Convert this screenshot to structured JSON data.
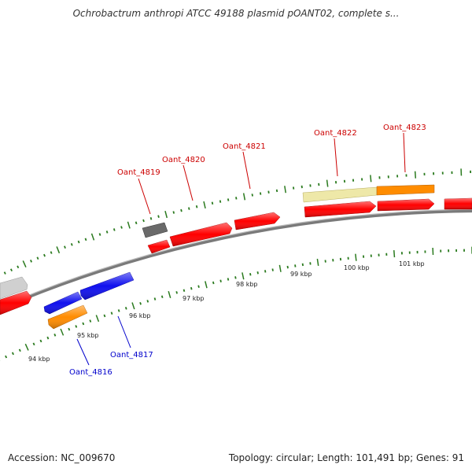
{
  "title": "Ochrobactrum anthropi ATCC 49188 plasmid pOANT02, complete s...",
  "footer": {
    "accession": "Accession: NC_009670",
    "summary": "Topology: circular; Length: 101,491 bp; Genes: 91"
  },
  "colors": {
    "backbone": "#8a8a8a",
    "tick": "#2a7a1e",
    "red": "#ff0000",
    "blue": "#1010ee",
    "orange": "#ff8c00",
    "gray": "#6a6a6a",
    "lightgray": "#d0d0d0",
    "beige": "#eee8a8",
    "label_top": "#cc0000",
    "label_bottom": "#0000cc"
  },
  "kbp_labels": [
    {
      "kbp": 94,
      "text": "94 kbp"
    },
    {
      "kbp": 95,
      "text": "95 kbp"
    },
    {
      "kbp": 96,
      "text": "96 kbp"
    },
    {
      "kbp": 97,
      "text": "97 kbp"
    },
    {
      "kbp": 98,
      "text": "98 kbp"
    },
    {
      "kbp": 99,
      "text": "99 kbp"
    },
    {
      "kbp": 100,
      "text": "100 kbp"
    },
    {
      "kbp": 101,
      "text": "101 kbp"
    }
  ],
  "gene_labels": [
    {
      "text": "Oant_4819",
      "strand": "forward"
    },
    {
      "text": "Oant_4820",
      "strand": "forward"
    },
    {
      "text": "Oant_4821",
      "strand": "forward"
    },
    {
      "text": "Oant_4822",
      "strand": "forward"
    },
    {
      "text": "Oant_4823",
      "strand": "forward"
    },
    {
      "text": "Oant_4817",
      "strand": "reverse"
    },
    {
      "text": "Oant_4816",
      "strand": "reverse"
    }
  ]
}
